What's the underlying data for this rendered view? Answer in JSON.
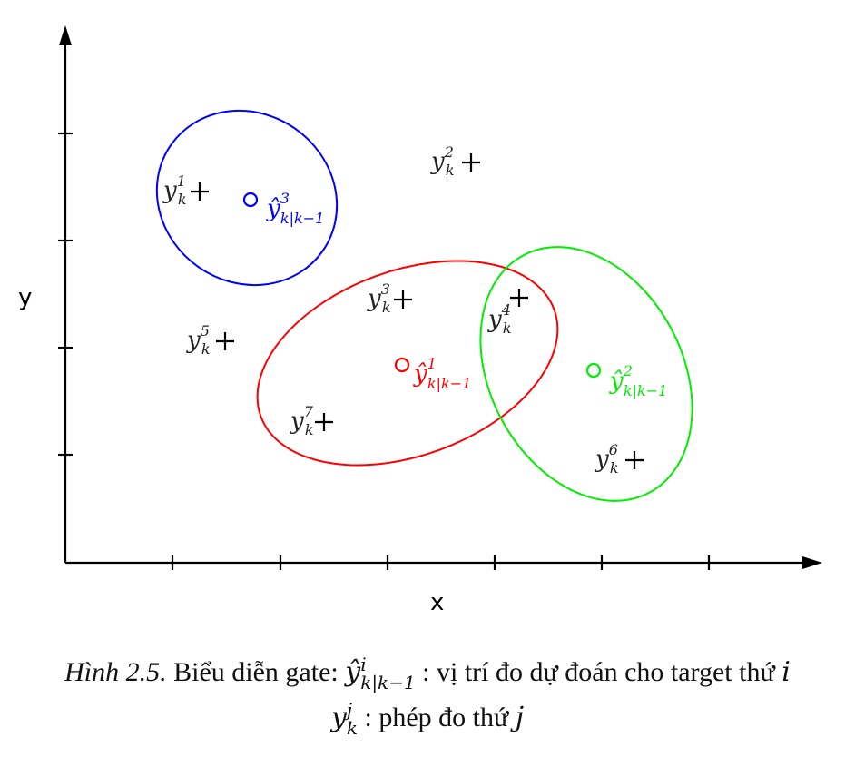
{
  "axes": {
    "x_label": "x",
    "y_label": "y",
    "axis_color": "#000000"
  },
  "gates": [
    {
      "id": "gate-1",
      "color": "#ff0000",
      "prediction_label": "ŷ",
      "sup": "1",
      "sub": "k|k−1"
    },
    {
      "id": "gate-2",
      "color": "#00ee00",
      "prediction_label": "ŷ",
      "sup": "2",
      "sub": "k|k−1"
    },
    {
      "id": "gate-3",
      "color": "#0000ff",
      "prediction_label": "ŷ",
      "sup": "3",
      "sub": "k|k−1"
    }
  ],
  "measurements": [
    {
      "base": "y",
      "sup": "1",
      "sub": "k"
    },
    {
      "base": "y",
      "sup": "2",
      "sub": "k"
    },
    {
      "base": "y",
      "sup": "3",
      "sub": "k"
    },
    {
      "base": "y",
      "sup": "4",
      "sub": "k"
    },
    {
      "base": "y",
      "sup": "5",
      "sub": "k"
    },
    {
      "base": "y",
      "sup": "6",
      "sub": "k"
    },
    {
      "base": "y",
      "sup": "7",
      "sub": "k"
    }
  ],
  "caption": {
    "figure_label": "Hình 2.5.",
    "line1_text": "Biểu diễn gate:",
    "line1_symbol": "ŷ",
    "line1_sup": "i",
    "line1_sub": "k|k−1",
    "line1_desc": ": vị trí đo dự đoán cho target thứ",
    "line1_var": "i",
    "line2_symbol": "y",
    "line2_sup": "j",
    "line2_sub": "k",
    "line2_desc": ": phép đo thứ",
    "line2_var": "j"
  }
}
